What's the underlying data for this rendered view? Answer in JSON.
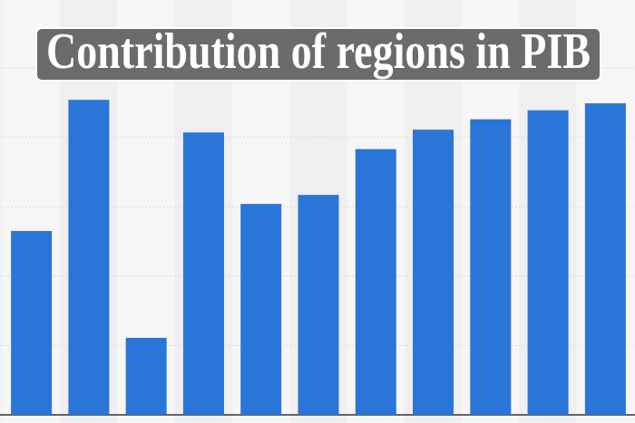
{
  "chart_data": {
    "type": "bar",
    "title": "Contribution of regions in PIB",
    "categories": [
      null,
      null,
      null,
      null,
      null,
      null,
      null,
      null,
      null,
      null,
      null
    ],
    "values": [
      2.65,
      4.54,
      1.11,
      4.07,
      3.04,
      3.17,
      3.83,
      4.11,
      4.26,
      4.39,
      4.49
    ],
    "color": "#2a75d8",
    "ylim": [
      0,
      6
    ],
    "yticks": [
      0,
      1,
      2,
      3,
      4,
      5
    ],
    "tick_labels": false,
    "grid": true
  }
}
